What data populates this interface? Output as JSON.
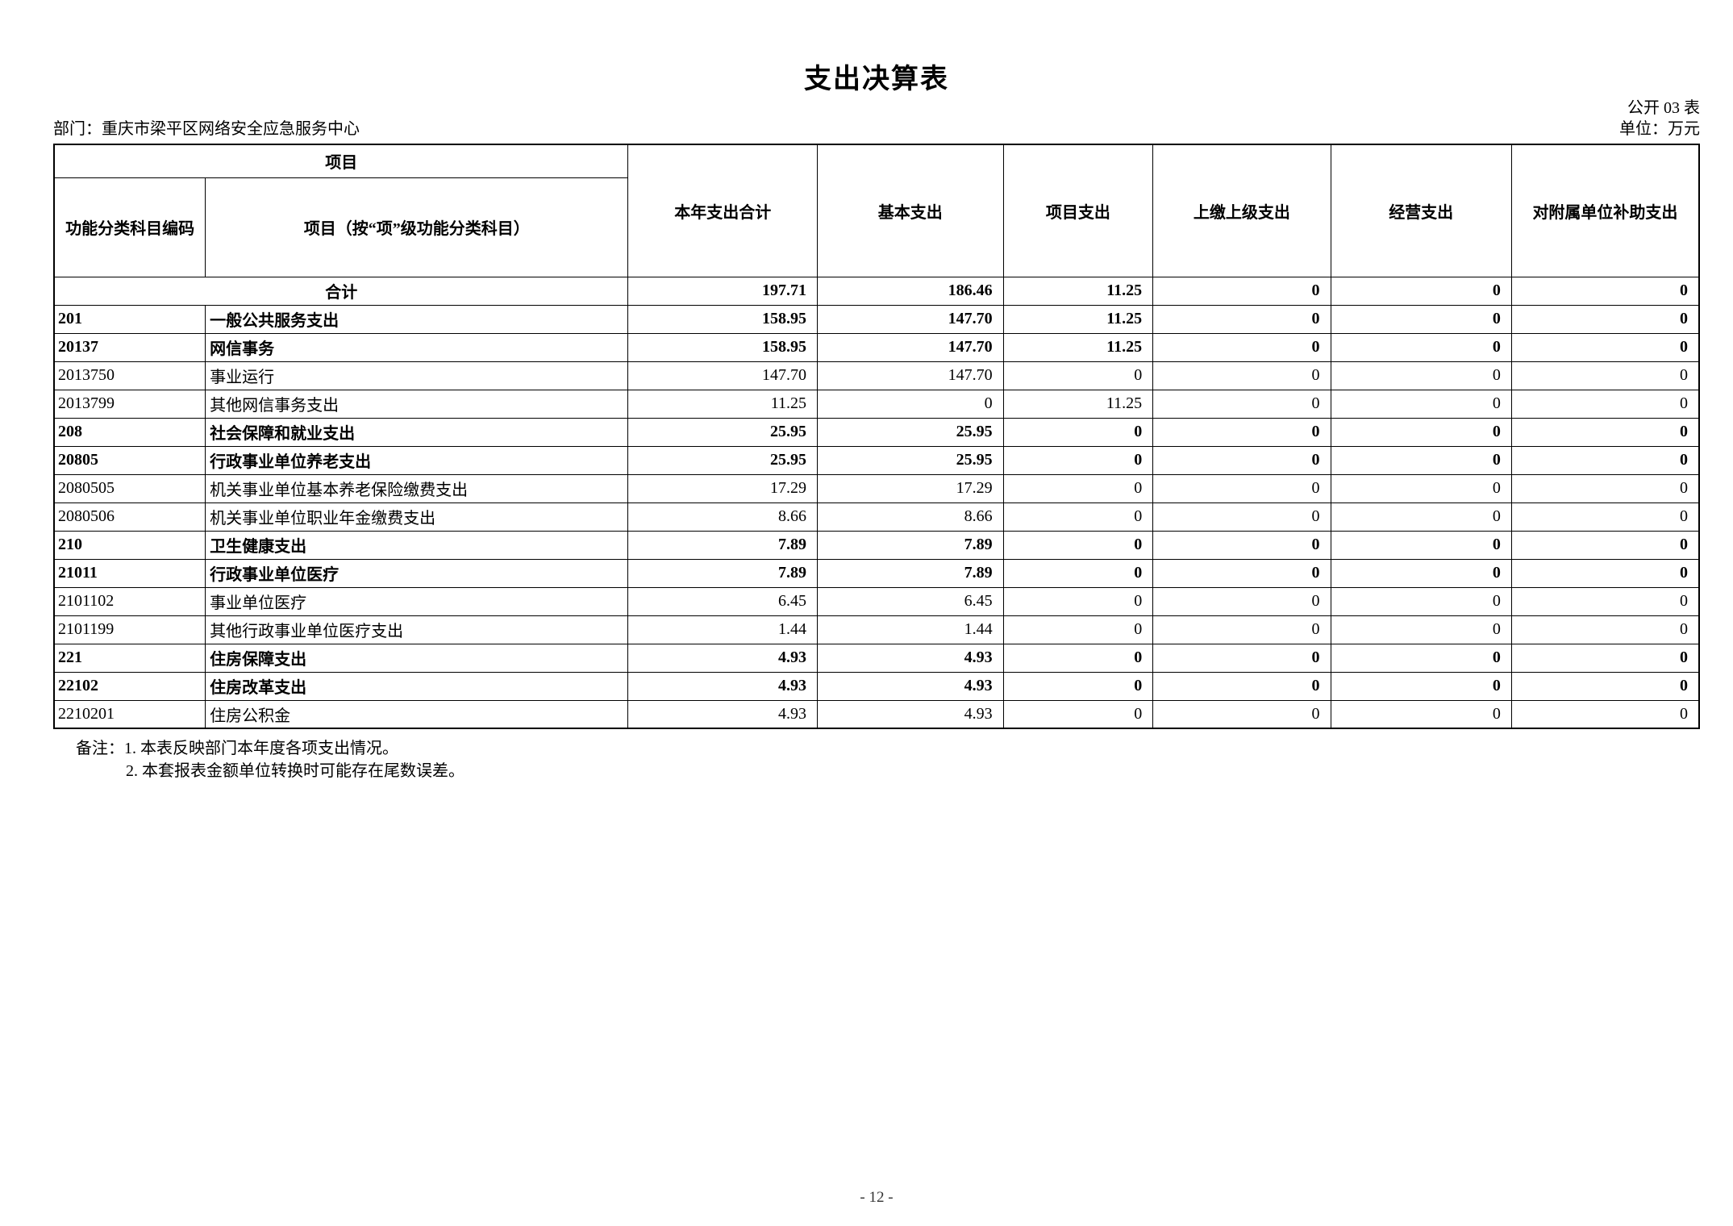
{
  "page": {
    "title": "支出决算表",
    "doc_label": "公开 03 表",
    "department": "部门：重庆市梁平区网络安全应急服务中心",
    "unit": "单位：万元",
    "page_number": "- 12 -"
  },
  "table": {
    "header": {
      "project_group": "项目",
      "code_column": "功能分类科目编码",
      "item_column": "项目（按“项”级功能分类科目）",
      "value_columns": [
        "本年支出合计",
        "基本支出",
        "项目支出",
        "上缴上级支出",
        "经营支出",
        "对附属单位补助支出"
      ]
    },
    "rows": [
      {
        "merged": true,
        "bold": true,
        "code": "",
        "item": "合计",
        "values": [
          "197.71",
          "186.46",
          "11.25",
          "0",
          "0",
          "0"
        ]
      },
      {
        "merged": false,
        "bold": true,
        "code": "201",
        "item": "一般公共服务支出",
        "values": [
          "158.95",
          "147.70",
          "11.25",
          "0",
          "0",
          "0"
        ]
      },
      {
        "merged": false,
        "bold": true,
        "code": "20137",
        "item": "网信事务",
        "values": [
          "158.95",
          "147.70",
          "11.25",
          "0",
          "0",
          "0"
        ]
      },
      {
        "merged": false,
        "bold": false,
        "code": "2013750",
        "item": "事业运行",
        "values": [
          "147.70",
          "147.70",
          "0",
          "0",
          "0",
          "0"
        ]
      },
      {
        "merged": false,
        "bold": false,
        "code": "2013799",
        "item": "其他网信事务支出",
        "values": [
          "11.25",
          "0",
          "11.25",
          "0",
          "0",
          "0"
        ]
      },
      {
        "merged": false,
        "bold": true,
        "code": "208",
        "item": "社会保障和就业支出",
        "values": [
          "25.95",
          "25.95",
          "0",
          "0",
          "0",
          "0"
        ]
      },
      {
        "merged": false,
        "bold": true,
        "code": "20805",
        "item": "行政事业单位养老支出",
        "values": [
          "25.95",
          "25.95",
          "0",
          "0",
          "0",
          "0"
        ]
      },
      {
        "merged": false,
        "bold": false,
        "code": "2080505",
        "item": "机关事业单位基本养老保险缴费支出",
        "values": [
          "17.29",
          "17.29",
          "0",
          "0",
          "0",
          "0"
        ]
      },
      {
        "merged": false,
        "bold": false,
        "code": "2080506",
        "item": "机关事业单位职业年金缴费支出",
        "values": [
          "8.66",
          "8.66",
          "0",
          "0",
          "0",
          "0"
        ]
      },
      {
        "merged": false,
        "bold": true,
        "code": "210",
        "item": "卫生健康支出",
        "values": [
          "7.89",
          "7.89",
          "0",
          "0",
          "0",
          "0"
        ]
      },
      {
        "merged": false,
        "bold": true,
        "code": "21011",
        "item": "行政事业单位医疗",
        "values": [
          "7.89",
          "7.89",
          "0",
          "0",
          "0",
          "0"
        ]
      },
      {
        "merged": false,
        "bold": false,
        "code": "2101102",
        "item": "事业单位医疗",
        "values": [
          "6.45",
          "6.45",
          "0",
          "0",
          "0",
          "0"
        ]
      },
      {
        "merged": false,
        "bold": false,
        "code": "2101199",
        "item": "其他行政事业单位医疗支出",
        "values": [
          "1.44",
          "1.44",
          "0",
          "0",
          "0",
          "0"
        ]
      },
      {
        "merged": false,
        "bold": true,
        "code": "221",
        "item": "住房保障支出",
        "values": [
          "4.93",
          "4.93",
          "0",
          "0",
          "0",
          "0"
        ]
      },
      {
        "merged": false,
        "bold": true,
        "code": "22102",
        "item": "住房改革支出",
        "values": [
          "4.93",
          "4.93",
          "0",
          "0",
          "0",
          "0"
        ]
      },
      {
        "merged": false,
        "bold": false,
        "code": "2210201",
        "item": "住房公积金",
        "values": [
          "4.93",
          "4.93",
          "0",
          "0",
          "0",
          "0"
        ]
      }
    ]
  },
  "notes": {
    "label": "备注：",
    "lines": [
      "1. 本表反映部门本年度各项支出情况。",
      "2. 本套报表金额单位转换时可能存在尾数误差。"
    ]
  }
}
